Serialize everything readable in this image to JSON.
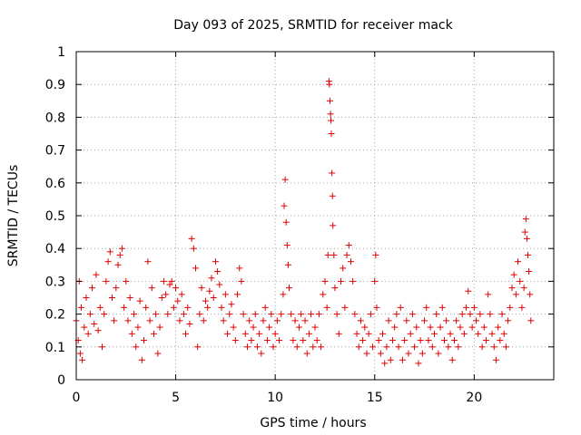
{
  "chart_data": {
    "type": "scatter",
    "title": "Day 093 of 2025, SRMTID for receiver mack",
    "xlabel": "GPS time / hours",
    "ylabel": "SRMTID / TECUs",
    "xlim": [
      0,
      24
    ],
    "ylim": [
      0,
      1
    ],
    "xticks": [
      0,
      5,
      10,
      15,
      20
    ],
    "yticks": [
      0,
      0.1,
      0.2,
      0.3,
      0.4,
      0.5,
      0.6,
      0.7,
      0.8,
      0.9,
      1
    ],
    "ytick_labels": [
      "0",
      "0.1",
      "0.2",
      "0.3",
      "0.4",
      "0.5",
      "0.6",
      "0.7",
      "0.8",
      "0.9",
      "1"
    ],
    "grid": true,
    "marker": "+",
    "color": "#e00000",
    "series": [
      {
        "name": "SRMTID",
        "points": [
          [
            0.0,
            0.18
          ],
          [
            0.1,
            0.12
          ],
          [
            0.15,
            0.3
          ],
          [
            0.2,
            0.08
          ],
          [
            0.25,
            0.22
          ],
          [
            0.3,
            0.06
          ],
          [
            0.4,
            0.16
          ],
          [
            0.5,
            0.25
          ],
          [
            0.6,
            0.14
          ],
          [
            0.7,
            0.2
          ],
          [
            0.8,
            0.28
          ],
          [
            0.9,
            0.17
          ],
          [
            1.0,
            0.32
          ],
          [
            1.1,
            0.15
          ],
          [
            1.2,
            0.22
          ],
          [
            1.3,
            0.1
          ],
          [
            1.4,
            0.2
          ],
          [
            1.5,
            0.3
          ],
          [
            1.6,
            0.36
          ],
          [
            1.7,
            0.39
          ],
          [
            1.8,
            0.25
          ],
          [
            1.9,
            0.18
          ],
          [
            2.0,
            0.28
          ],
          [
            2.1,
            0.35
          ],
          [
            2.2,
            0.38
          ],
          [
            2.3,
            0.4
          ],
          [
            2.4,
            0.22
          ],
          [
            2.5,
            0.3
          ],
          [
            2.6,
            0.18
          ],
          [
            2.7,
            0.25
          ],
          [
            2.8,
            0.14
          ],
          [
            2.9,
            0.2
          ],
          [
            3.0,
            0.1
          ],
          [
            3.1,
            0.16
          ],
          [
            3.2,
            0.24
          ],
          [
            3.3,
            0.06
          ],
          [
            3.4,
            0.12
          ],
          [
            3.5,
            0.22
          ],
          [
            3.6,
            0.36
          ],
          [
            3.7,
            0.18
          ],
          [
            3.8,
            0.28
          ],
          [
            3.9,
            0.14
          ],
          [
            4.0,
            0.2
          ],
          [
            4.1,
            0.08
          ],
          [
            4.2,
            0.16
          ],
          [
            4.3,
            0.25
          ],
          [
            4.4,
            0.3
          ],
          [
            4.5,
            0.26
          ],
          [
            4.6,
            0.2
          ],
          [
            4.7,
            0.29
          ],
          [
            4.8,
            0.3
          ],
          [
            4.9,
            0.22
          ],
          [
            5.0,
            0.28
          ],
          [
            5.1,
            0.24
          ],
          [
            5.2,
            0.18
          ],
          [
            5.3,
            0.26
          ],
          [
            5.4,
            0.2
          ],
          [
            5.5,
            0.14
          ],
          [
            5.6,
            0.22
          ],
          [
            5.7,
            0.17
          ],
          [
            5.8,
            0.43
          ],
          [
            5.9,
            0.4
          ],
          [
            6.0,
            0.34
          ],
          [
            6.1,
            0.1
          ],
          [
            6.2,
            0.2
          ],
          [
            6.3,
            0.28
          ],
          [
            6.4,
            0.18
          ],
          [
            6.5,
            0.24
          ],
          [
            6.6,
            0.22
          ],
          [
            6.7,
            0.27
          ],
          [
            6.8,
            0.31
          ],
          [
            6.9,
            0.25
          ],
          [
            7.0,
            0.36
          ],
          [
            7.1,
            0.33
          ],
          [
            7.2,
            0.29
          ],
          [
            7.3,
            0.22
          ],
          [
            7.4,
            0.18
          ],
          [
            7.5,
            0.26
          ],
          [
            7.6,
            0.14
          ],
          [
            7.7,
            0.2
          ],
          [
            7.8,
            0.23
          ],
          [
            7.9,
            0.16
          ],
          [
            8.0,
            0.12
          ],
          [
            8.1,
            0.26
          ],
          [
            8.2,
            0.34
          ],
          [
            8.3,
            0.3
          ],
          [
            8.4,
            0.2
          ],
          [
            8.5,
            0.14
          ],
          [
            8.6,
            0.1
          ],
          [
            8.7,
            0.18
          ],
          [
            8.8,
            0.12
          ],
          [
            8.9,
            0.16
          ],
          [
            9.0,
            0.2
          ],
          [
            9.1,
            0.1
          ],
          [
            9.2,
            0.14
          ],
          [
            9.3,
            0.08
          ],
          [
            9.4,
            0.18
          ],
          [
            9.5,
            0.22
          ],
          [
            9.6,
            0.12
          ],
          [
            9.7,
            0.16
          ],
          [
            9.8,
            0.2
          ],
          [
            9.9,
            0.1
          ],
          [
            10.0,
            0.14
          ],
          [
            10.1,
            0.18
          ],
          [
            10.2,
            0.12
          ],
          [
            10.3,
            0.2
          ],
          [
            10.4,
            0.26
          ],
          [
            10.45,
            0.53
          ],
          [
            10.5,
            0.61
          ],
          [
            10.55,
            0.48
          ],
          [
            10.6,
            0.41
          ],
          [
            10.65,
            0.35
          ],
          [
            10.7,
            0.28
          ],
          [
            10.8,
            0.2
          ],
          [
            10.9,
            0.12
          ],
          [
            11.0,
            0.18
          ],
          [
            11.1,
            0.1
          ],
          [
            11.2,
            0.16
          ],
          [
            11.3,
            0.2
          ],
          [
            11.4,
            0.12
          ],
          [
            11.5,
            0.18
          ],
          [
            11.6,
            0.08
          ],
          [
            11.7,
            0.14
          ],
          [
            11.8,
            0.2
          ],
          [
            11.9,
            0.1
          ],
          [
            12.0,
            0.16
          ],
          [
            12.1,
            0.12
          ],
          [
            12.2,
            0.2
          ],
          [
            12.3,
            0.1
          ],
          [
            12.4,
            0.26
          ],
          [
            12.5,
            0.3
          ],
          [
            12.6,
            0.22
          ],
          [
            12.65,
            0.38
          ],
          [
            12.7,
            0.91
          ],
          [
            12.72,
            0.9
          ],
          [
            12.75,
            0.85
          ],
          [
            12.78,
            0.81
          ],
          [
            12.8,
            0.79
          ],
          [
            12.82,
            0.75
          ],
          [
            12.85,
            0.63
          ],
          [
            12.88,
            0.56
          ],
          [
            12.9,
            0.47
          ],
          [
            12.95,
            0.38
          ],
          [
            13.0,
            0.28
          ],
          [
            13.1,
            0.2
          ],
          [
            13.2,
            0.14
          ],
          [
            13.3,
            0.3
          ],
          [
            13.4,
            0.34
          ],
          [
            13.5,
            0.22
          ],
          [
            13.6,
            0.38
          ],
          [
            13.7,
            0.41
          ],
          [
            13.8,
            0.36
          ],
          [
            13.9,
            0.3
          ],
          [
            14.0,
            0.2
          ],
          [
            14.1,
            0.14
          ],
          [
            14.2,
            0.1
          ],
          [
            14.3,
            0.18
          ],
          [
            14.4,
            0.12
          ],
          [
            14.5,
            0.16
          ],
          [
            14.6,
            0.08
          ],
          [
            14.7,
            0.14
          ],
          [
            14.8,
            0.2
          ],
          [
            14.9,
            0.1
          ],
          [
            15.0,
            0.3
          ],
          [
            15.05,
            0.38
          ],
          [
            15.1,
            0.22
          ],
          [
            15.2,
            0.12
          ],
          [
            15.3,
            0.08
          ],
          [
            15.4,
            0.14
          ],
          [
            15.5,
            0.05
          ],
          [
            15.6,
            0.1
          ],
          [
            15.7,
            0.18
          ],
          [
            15.8,
            0.06
          ],
          [
            15.9,
            0.12
          ],
          [
            16.0,
            0.16
          ],
          [
            16.1,
            0.2
          ],
          [
            16.2,
            0.1
          ],
          [
            16.3,
            0.22
          ],
          [
            16.4,
            0.06
          ],
          [
            16.5,
            0.12
          ],
          [
            16.6,
            0.18
          ],
          [
            16.7,
            0.08
          ],
          [
            16.8,
            0.14
          ],
          [
            16.9,
            0.2
          ],
          [
            17.0,
            0.1
          ],
          [
            17.1,
            0.16
          ],
          [
            17.2,
            0.05
          ],
          [
            17.3,
            0.12
          ],
          [
            17.4,
            0.08
          ],
          [
            17.5,
            0.18
          ],
          [
            17.6,
            0.22
          ],
          [
            17.7,
            0.12
          ],
          [
            17.8,
            0.16
          ],
          [
            17.9,
            0.1
          ],
          [
            18.0,
            0.14
          ],
          [
            18.1,
            0.2
          ],
          [
            18.2,
            0.08
          ],
          [
            18.3,
            0.16
          ],
          [
            18.4,
            0.22
          ],
          [
            18.5,
            0.12
          ],
          [
            18.6,
            0.18
          ],
          [
            18.7,
            0.1
          ],
          [
            18.8,
            0.14
          ],
          [
            18.9,
            0.06
          ],
          [
            19.0,
            0.12
          ],
          [
            19.1,
            0.18
          ],
          [
            19.2,
            0.1
          ],
          [
            19.3,
            0.16
          ],
          [
            19.4,
            0.2
          ],
          [
            19.5,
            0.14
          ],
          [
            19.6,
            0.22
          ],
          [
            19.7,
            0.27
          ],
          [
            19.8,
            0.2
          ],
          [
            19.9,
            0.16
          ],
          [
            20.0,
            0.22
          ],
          [
            20.1,
            0.18
          ],
          [
            20.2,
            0.14
          ],
          [
            20.3,
            0.2
          ],
          [
            20.4,
            0.1
          ],
          [
            20.5,
            0.16
          ],
          [
            20.6,
            0.12
          ],
          [
            20.7,
            0.26
          ],
          [
            20.8,
            0.2
          ],
          [
            20.9,
            0.14
          ],
          [
            21.0,
            0.1
          ],
          [
            21.1,
            0.06
          ],
          [
            21.2,
            0.16
          ],
          [
            21.3,
            0.12
          ],
          [
            21.4,
            0.2
          ],
          [
            21.5,
            0.14
          ],
          [
            21.6,
            0.1
          ],
          [
            21.7,
            0.18
          ],
          [
            21.8,
            0.22
          ],
          [
            21.9,
            0.28
          ],
          [
            22.0,
            0.32
          ],
          [
            22.1,
            0.26
          ],
          [
            22.2,
            0.36
          ],
          [
            22.3,
            0.3
          ],
          [
            22.4,
            0.22
          ],
          [
            22.5,
            0.28
          ],
          [
            22.55,
            0.45
          ],
          [
            22.6,
            0.49
          ],
          [
            22.65,
            0.43
          ],
          [
            22.7,
            0.38
          ],
          [
            22.75,
            0.33
          ],
          [
            22.8,
            0.26
          ],
          [
            22.85,
            0.18
          ]
        ]
      }
    ]
  }
}
